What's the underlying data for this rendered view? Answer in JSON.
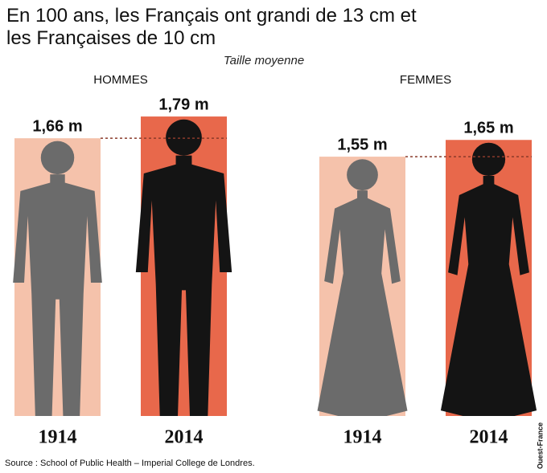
{
  "chart_data": {
    "type": "bar",
    "title": "En 100 ans, les Français ont grandi de 13 cm et les Françaises de 10 cm",
    "subtitle": "Taille moyenne",
    "categories": [
      "HOMMES",
      "FEMMES"
    ],
    "series": [
      {
        "name": "1914",
        "color": "#f5c2ab",
        "figure_color": "#6b6b6b",
        "values": [
          1.66,
          1.55
        ],
        "value_labels": [
          "1,66 m",
          "1,55 m"
        ]
      },
      {
        "name": "2014",
        "color": "#e8684b",
        "figure_color": "#141414",
        "values": [
          1.79,
          1.65
        ],
        "value_labels": [
          "1,79 m",
          "1,65 m"
        ]
      }
    ],
    "ylim": [
      0,
      1.8
    ],
    "source": "Source : School of Public Health – Imperial College de Londres.",
    "credit": "Ouest-France"
  }
}
